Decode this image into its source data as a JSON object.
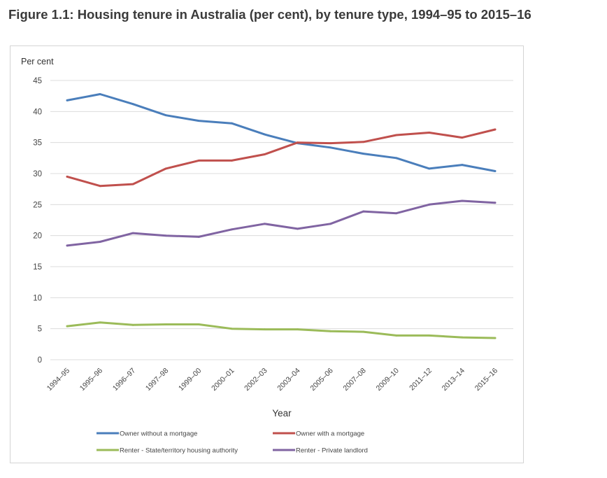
{
  "figure": {
    "title": "Figure 1.1: Housing tenure in Australia (per cent), by tenure type, 1994–95 to 2015–16"
  },
  "chart_data": {
    "type": "line",
    "title": "Figure 1.1: Housing tenure in Australia (per cent), by tenure type, 1994–95 to 2015–16",
    "ylabel": "Per cent",
    "xlabel": "Year",
    "ylim": [
      0,
      45
    ],
    "yticks": [
      0,
      5,
      10,
      15,
      20,
      25,
      30,
      35,
      40,
      45
    ],
    "grid": true,
    "legend_position": "bottom",
    "categories": [
      "1994–95",
      "1995–96",
      "1996–97",
      "1997–98",
      "1999–00",
      "2000–01",
      "2002–03",
      "2003–04",
      "2005–06",
      "2007–08",
      "2009–10",
      "2011–12",
      "2013–14",
      "2015–16"
    ],
    "series": [
      {
        "name": "Owner without a mortgage",
        "color": "#4a7ebb",
        "values": [
          41.8,
          42.8,
          41.2,
          39.4,
          38.5,
          38.1,
          36.3,
          34.9,
          34.2,
          33.2,
          32.5,
          30.8,
          31.4,
          30.4
        ]
      },
      {
        "name": "Owner with a mortgage",
        "color": "#c0504d",
        "values": [
          29.5,
          28.0,
          28.3,
          30.8,
          32.1,
          32.1,
          33.1,
          35.0,
          34.9,
          35.1,
          36.2,
          36.6,
          35.8,
          37.1
        ]
      },
      {
        "name": "Renter - State/territory housing authority",
        "color": "#9bbb59",
        "values": [
          5.4,
          6.0,
          5.6,
          5.7,
          5.7,
          5.0,
          4.9,
          4.9,
          4.6,
          4.5,
          3.9,
          3.9,
          3.6,
          3.5
        ]
      },
      {
        "name": "Renter - Private landlord",
        "color": "#8064a2",
        "values": [
          18.4,
          19.0,
          20.4,
          20.0,
          19.8,
          21.0,
          21.9,
          21.1,
          21.9,
          23.9,
          23.6,
          25.0,
          25.6,
          25.3
        ]
      }
    ]
  }
}
